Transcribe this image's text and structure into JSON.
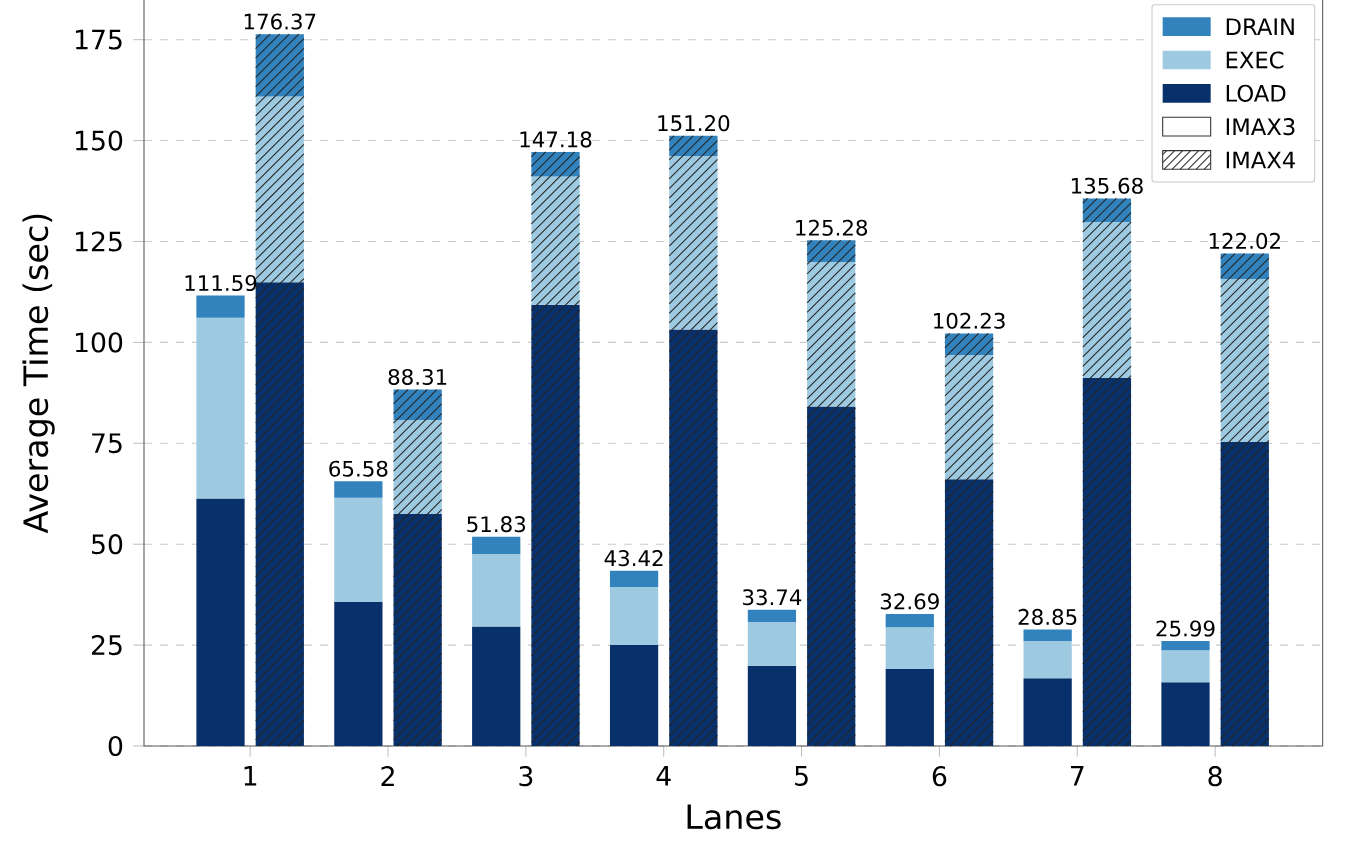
{
  "chart_data": {
    "type": "bar",
    "stacked": true,
    "xlabel": "Lanes",
    "ylabel": "Average Time (sec)",
    "xlim": [
      0.23,
      8.78
    ],
    "xticks": [
      1,
      2,
      3,
      4,
      5,
      6,
      7,
      8
    ],
    "ylim": [
      0,
      185
    ],
    "yticks": [
      0,
      25,
      50,
      75,
      100,
      125,
      150,
      175
    ],
    "grid": "y",
    "legend": "top right",
    "annotations": [
      "IMAX3",
      "IMAX4"
    ],
    "totals": [
      "111.59",
      "176.37",
      "65.58",
      "88.31",
      "51.83",
      "147.18",
      "43.42",
      "151.20",
      "33.74",
      "125.28",
      "32.69",
      "102.23",
      "28.85",
      "135.68",
      "25.99",
      "122.02"
    ],
    "series": [
      {
        "name": "LOAD",
        "color": "#08306b",
        "x": [
          0.785,
          1.215,
          1.785,
          2.215,
          2.785,
          3.215,
          3.785,
          4.215,
          4.785,
          5.215,
          5.785,
          6.215,
          6.785,
          7.215,
          7.785,
          8.215
        ],
        "values": [
          61.3,
          114.9,
          35.7,
          57.5,
          29.6,
          109.3,
          25.0,
          103.2,
          19.9,
          84.1,
          19.1,
          66.1,
          16.8,
          91.2,
          15.8,
          75.3
        ]
      },
      {
        "name": "EXEC",
        "color": "#9ecae1",
        "x": [
          0.785,
          1.215,
          1.785,
          2.215,
          2.785,
          3.215,
          3.785,
          4.215,
          4.785,
          5.215,
          5.785,
          6.215,
          6.785,
          7.215,
          7.785,
          8.215
        ],
        "values": [
          44.8,
          46.0,
          25.8,
          23.3,
          18.0,
          31.8,
          14.4,
          43.0,
          10.8,
          35.8,
          10.3,
          30.8,
          9.2,
          38.6,
          7.9,
          40.4
        ]
      },
      {
        "name": "DRAIN",
        "color": "#3182bd",
        "x": [
          0.785,
          1.215,
          1.785,
          2.215,
          2.785,
          3.215,
          3.785,
          4.215,
          4.785,
          5.215,
          5.785,
          6.215,
          6.785,
          7.215,
          7.785,
          8.215
        ],
        "values": [
          5.49,
          15.47,
          4.08,
          7.51,
          4.23,
          6.08,
          4.02,
          5.0,
          3.04,
          5.38,
          3.29,
          5.33,
          2.85,
          5.88,
          2.29,
          6.32
        ]
      }
    ]
  }
}
